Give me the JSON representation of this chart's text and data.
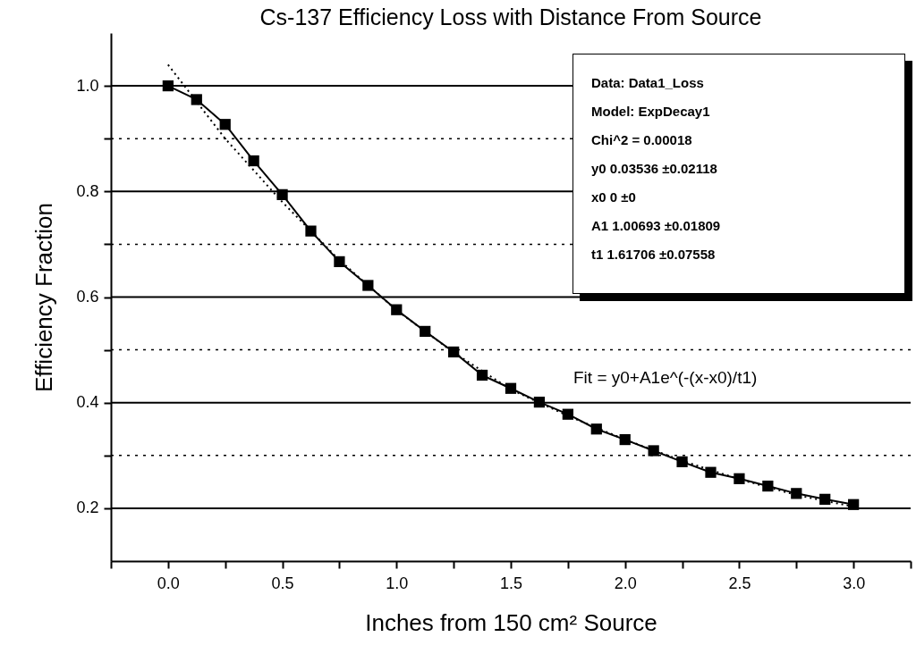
{
  "chart_data": {
    "type": "line",
    "title": "Cs-137 Efficiency Loss with Distance From Source",
    "xlabel": "Inches from 150 cm² Source",
    "ylabel": "Efficiency Fraction",
    "x": [
      0,
      0.125,
      0.25,
      0.375,
      0.5,
      0.625,
      0.75,
      0.875,
      1.0,
      1.125,
      1.25,
      1.375,
      1.5,
      1.625,
      1.75,
      1.875,
      2.0,
      2.125,
      2.25,
      2.375,
      2.5,
      2.625,
      2.75,
      2.875,
      3.0
    ],
    "series": [
      {
        "color": "#000000",
        "marker": "square",
        "line_style": "solid",
        "values": [
          1.0,
          0.974,
          0.927,
          0.858,
          0.794,
          0.725,
          0.667,
          0.622,
          0.576,
          0.535,
          0.496,
          0.452,
          0.427,
          0.401,
          0.378,
          0.35,
          0.33,
          0.309,
          0.288,
          0.268,
          0.256,
          0.242,
          0.228,
          0.217,
          0.207
        ]
      },
      {
        "type": "line",
        "color": "#000000",
        "marker": "none",
        "line_style": "dotted",
        "x": [
          0,
          0.25,
          0.5,
          0.75,
          1.0,
          1.25,
          1.5,
          1.75,
          2.0,
          2.25,
          2.5,
          2.75,
          3.0
        ],
        "values": [
          1.04,
          0.9,
          0.78,
          0.67,
          0.575,
          0.495,
          0.425,
          0.375,
          0.33,
          0.29,
          0.255,
          0.225,
          0.203
        ]
      }
    ],
    "xlim": [
      -0.25,
      3.25
    ],
    "xticks": [
      {
        "value": -0.25,
        "label": null
      },
      {
        "value": 0,
        "label": "0.0"
      },
      {
        "value": 0.25,
        "label": null
      },
      0.5,
      {
        "value": 0.75,
        "label": null
      },
      {
        "value": 1,
        "label": "1.0"
      },
      {
        "value": 1.25,
        "label": null
      },
      1.5,
      {
        "value": 1.75,
        "label": null
      },
      {
        "value": 2,
        "label": "2.0"
      },
      {
        "value": 2.25,
        "label": null
      },
      2.5,
      {
        "value": 2.75,
        "label": null
      },
      {
        "value": 3,
        "label": "3.0"
      },
      {
        "value": 3.25,
        "label": null
      }
    ],
    "ylim": [
      0.1,
      1.1
    ],
    "yticks": [
      0.2,
      {
        "value": 0.3,
        "label": null
      },
      0.4,
      {
        "value": 0.5,
        "label": null
      },
      0.6,
      {
        "value": 0.7,
        "label": null
      },
      0.8,
      {
        "value": 0.9,
        "label": null
      },
      {
        "value": 1,
        "label": "1.0"
      }
    ],
    "grid": "y",
    "annotations": [
      "Data: Data1_Loss",
      "Model: ExpDecay1",
      "Chi^2 = 0.00018",
      "y0    0.03536    ±0.02118",
      "x0    0    ±0",
      "A1    1.00693    ±0.01809",
      "t1    1.61706    ±0.07558",
      "Fit = y0+A1e^(-(x-x0)/t1)"
    ]
  }
}
